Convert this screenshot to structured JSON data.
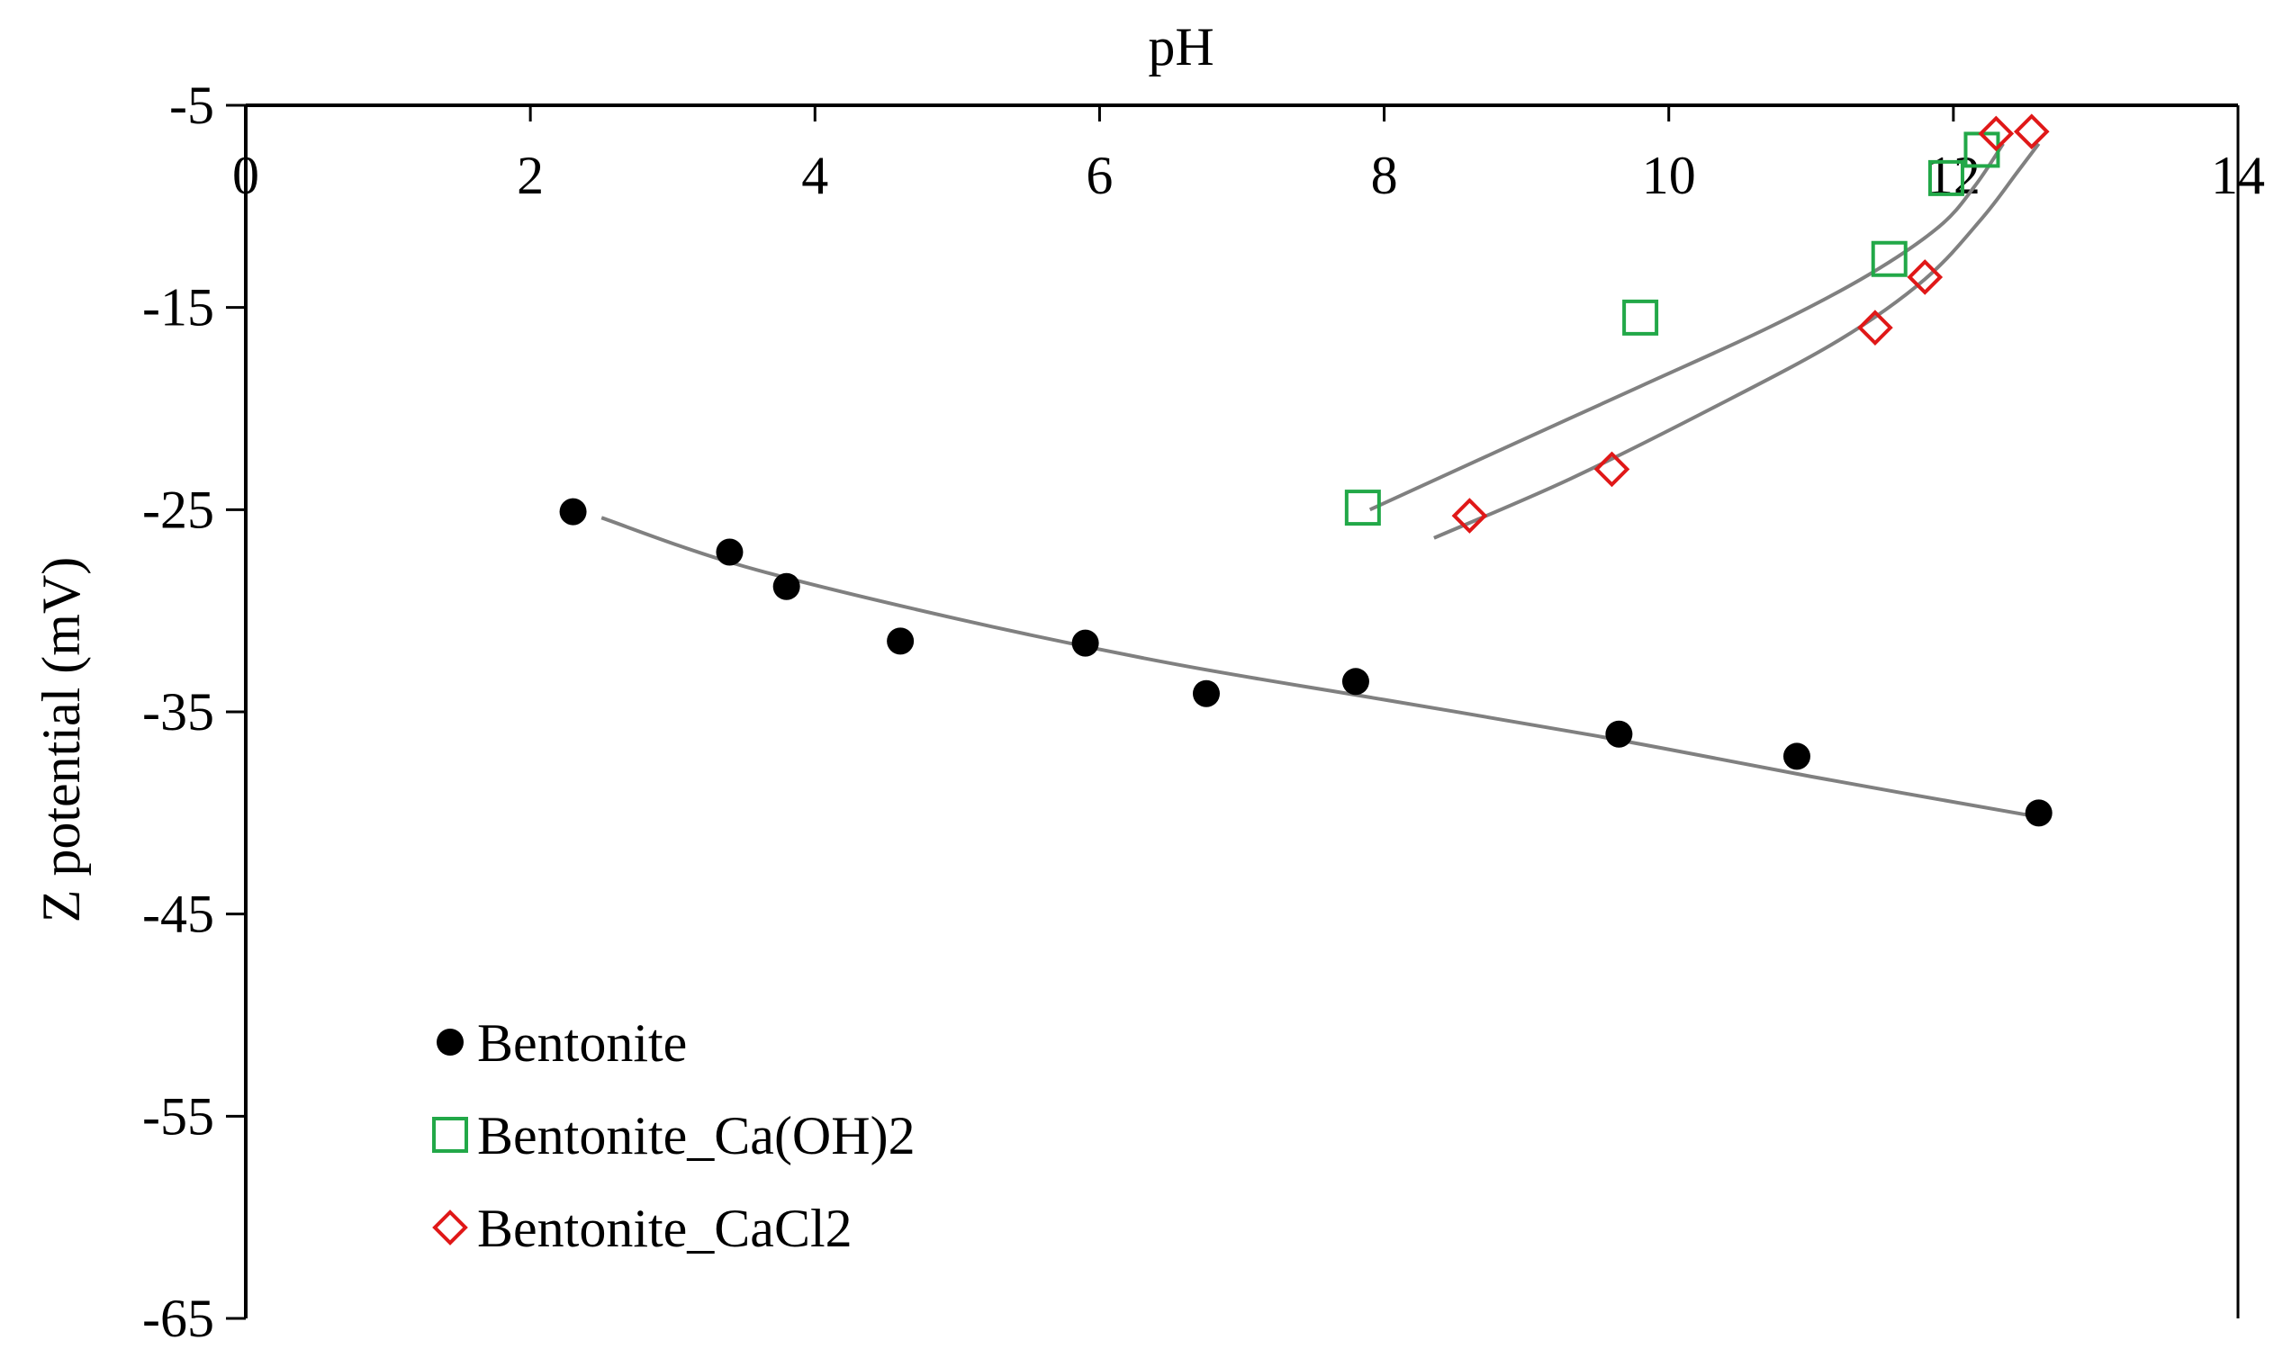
{
  "chart_data": {
    "type": "scatter",
    "title": "",
    "xlabel": "pH",
    "ylabel": "Z potential (mV)",
    "xlim": [
      0,
      14
    ],
    "ylim": [
      -65,
      -5
    ],
    "xticks": [
      0,
      2,
      4,
      6,
      8,
      10,
      12,
      14
    ],
    "yticks": [
      -5,
      -15,
      -25,
      -35,
      -45,
      -55,
      -65
    ],
    "xtick_labels": [
      "0",
      "2",
      "4",
      "6",
      "8",
      "10",
      "12",
      "14"
    ],
    "ytick_labels": [
      "-5",
      "-15",
      "-25",
      "-35",
      "-45",
      "-55",
      "-65"
    ],
    "x_axis_position": "top",
    "grid": false,
    "legend_position": "bottom-left",
    "series": [
      {
        "name": "Bentonite",
        "marker": "filled-circle",
        "color": "#000000",
        "x": [
          2.3,
          3.4,
          3.8,
          4.6,
          5.9,
          6.75,
          7.8,
          9.65,
          10.9,
          12.6
        ],
        "y": [
          -25.1,
          -27.1,
          -28.8,
          -31.5,
          -31.6,
          -34.1,
          -33.5,
          -36.1,
          -37.2,
          -40.0
        ],
        "trend": {
          "x_range": [
            2.5,
            12.6
          ],
          "points": [
            [
              2.5,
              -25.4
            ],
            [
              3.5,
              -27.8
            ],
            [
              5.0,
              -30.4
            ],
            [
              6.5,
              -32.6
            ],
            [
              8.0,
              -34.4
            ],
            [
              9.5,
              -36.2
            ],
            [
              11.0,
              -38.2
            ],
            [
              12.6,
              -40.2
            ]
          ]
        }
      },
      {
        "name": "Bentonite_Ca(OH)2",
        "marker": "open-square",
        "color": "#22a848",
        "x": [
          7.85,
          9.8,
          11.55,
          11.95,
          12.2
        ],
        "y": [
          -24.9,
          -15.5,
          -12.6,
          -8.6,
          -7.2
        ],
        "trend": {
          "x_range": [
            7.9,
            12.35
          ],
          "points": [
            [
              7.9,
              -25.0
            ],
            [
              8.8,
              -22.1
            ],
            [
              9.8,
              -18.9
            ],
            [
              10.7,
              -16.0
            ],
            [
              11.4,
              -13.4
            ],
            [
              11.9,
              -11.0
            ],
            [
              12.15,
              -9.0
            ],
            [
              12.35,
              -6.9
            ]
          ]
        }
      },
      {
        "name": "Bentonite_CaCl2",
        "marker": "open-diamond",
        "color": "#e01818",
        "x": [
          8.6,
          9.6,
          11.45,
          11.8,
          12.3,
          12.55
        ],
        "y": [
          -25.3,
          -23.0,
          -16.0,
          -13.5,
          -6.4,
          -6.3
        ],
        "trend": {
          "x_range": [
            8.35,
            12.6
          ],
          "points": [
            [
              8.35,
              -26.4
            ],
            [
              9.3,
              -23.5
            ],
            [
              10.3,
              -20.0
            ],
            [
              11.2,
              -16.6
            ],
            [
              11.8,
              -13.6
            ],
            [
              12.2,
              -10.6
            ],
            [
              12.45,
              -8.3
            ],
            [
              12.6,
              -6.9
            ]
          ]
        }
      }
    ]
  }
}
